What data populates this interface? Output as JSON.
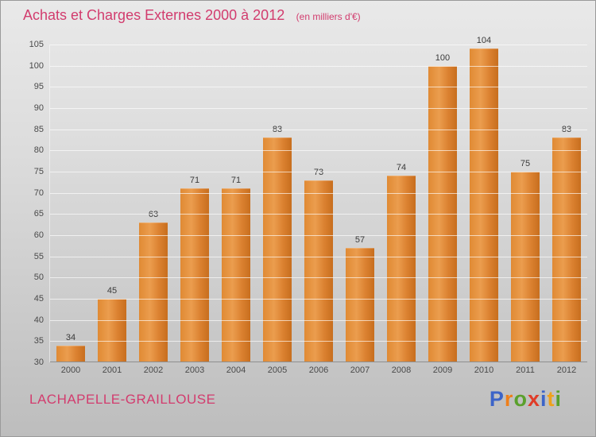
{
  "chart_data": {
    "type": "bar",
    "title": "Achats et Charges Externes 2000 à 2012",
    "subtitle": "(en milliers d'€)",
    "categories": [
      "2000",
      "2001",
      "2002",
      "2003",
      "2004",
      "2005",
      "2006",
      "2007",
      "2008",
      "2009",
      "2010",
      "2011",
      "2012"
    ],
    "values": [
      34,
      45,
      63,
      71,
      71,
      83,
      73,
      57,
      74,
      100,
      104,
      75,
      83
    ],
    "xlabel": "",
    "ylabel": "",
    "ylim": [
      30,
      105
    ],
    "ytick_step": 5,
    "grid": true,
    "legend": "none",
    "bar_color": "#e08a34"
  },
  "footer": {
    "entity": "LACHAPELLE-GRAILLOUSE"
  },
  "logo": {
    "name": "Proxiti",
    "letters": [
      {
        "ch": "P",
        "color": "#3c64c8"
      },
      {
        "ch": "r",
        "color": "#ef7f1a"
      },
      {
        "ch": "o",
        "color": "#5aa02c"
      },
      {
        "ch": "x",
        "color": "#e03c28"
      },
      {
        "ch": "i",
        "color": "#3c64c8"
      },
      {
        "ch": "t",
        "color": "#efa11a"
      },
      {
        "ch": "i",
        "color": "#5aa02c"
      }
    ]
  },
  "colors": {
    "title": "#d23c6e",
    "entity": "#d23c6e",
    "tick_text": "#4a4a4a",
    "bar": "#e08a34"
  }
}
